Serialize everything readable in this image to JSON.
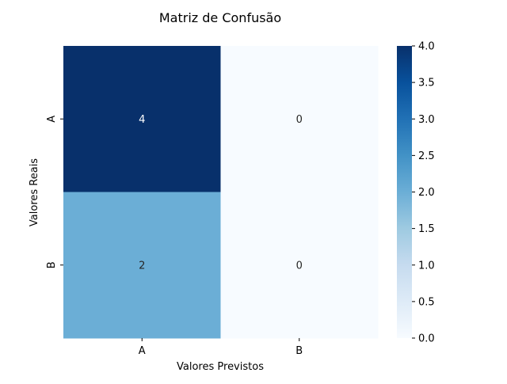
{
  "chart_data": {
    "type": "heatmap",
    "title": "Matriz de Confusão",
    "xlabel": "Valores Previstos",
    "ylabel": "Valores Reais",
    "x_categories": [
      "A",
      "B"
    ],
    "y_categories": [
      "A",
      "B"
    ],
    "values": [
      [
        4,
        0
      ],
      [
        2,
        0
      ]
    ],
    "value_range": [
      0.0,
      4.0
    ],
    "colormap": "Blues",
    "colorbar_ticks": [
      "0.0",
      "0.5",
      "1.0",
      "1.5",
      "2.0",
      "2.5",
      "3.0",
      "3.5",
      "4.0"
    ],
    "annotations": true,
    "grid": false
  }
}
